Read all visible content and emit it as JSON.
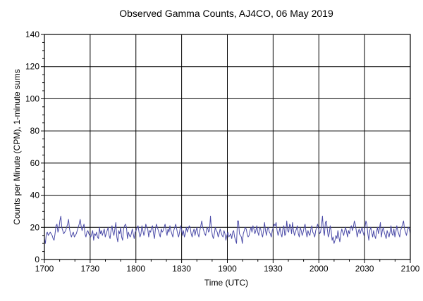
{
  "chart_data": {
    "type": "line",
    "title": "Observed Gamma Counts, AJ4CO, 06 May 2019",
    "xlabel": "Time (UTC)",
    "ylabel": "Counts per Minute (CPM), 1-minute sums",
    "x_tick_labels": [
      "1700",
      "1730",
      "1800",
      "1830",
      "1900",
      "1930",
      "2000",
      "2030",
      "2100"
    ],
    "y_ticks": [
      0,
      20,
      40,
      60,
      80,
      100,
      120,
      140
    ],
    "xlim": [
      "1700",
      "2100"
    ],
    "ylim": [
      0,
      140
    ],
    "grid": true,
    "series_color": "#4b4ba8",
    "series": [
      {
        "values": [
          13,
          10,
          16,
          17,
          15,
          16,
          17,
          16,
          15,
          13,
          12,
          16,
          21,
          22,
          17,
          19,
          24,
          27,
          20,
          18,
          16,
          17,
          18,
          20,
          22,
          25,
          19,
          16,
          14,
          16,
          17,
          14,
          15,
          16,
          18,
          20,
          22,
          25,
          21,
          18,
          20,
          22,
          16,
          14,
          17,
          18,
          16,
          15,
          14,
          16,
          18,
          12,
          16,
          15,
          17,
          14,
          13,
          20,
          16,
          18,
          15,
          17,
          19,
          14,
          16,
          18,
          20,
          15,
          13,
          18,
          21,
          17,
          15,
          19,
          23,
          14,
          11,
          18,
          16,
          20,
          14,
          12,
          19,
          21,
          22,
          20,
          13,
          17,
          15,
          14,
          16,
          19,
          16,
          13,
          17,
          18,
          20,
          21,
          17,
          14,
          16,
          21,
          18,
          15,
          17,
          22,
          20,
          19,
          14,
          18,
          17,
          20,
          21,
          16,
          13,
          19,
          22,
          20,
          18,
          16,
          14,
          19,
          17,
          18,
          20,
          22,
          18,
          15,
          19,
          17,
          21,
          18,
          16,
          14,
          18,
          20,
          22,
          19,
          16,
          14,
          17,
          21,
          19,
          15,
          18,
          14,
          16,
          20,
          17,
          19,
          21,
          20,
          16,
          14,
          17,
          19,
          15,
          18,
          20,
          16,
          14,
          18,
          21,
          24,
          20,
          18,
          16,
          15,
          19,
          20,
          17,
          18,
          27,
          19,
          15,
          13,
          16,
          20,
          18,
          17,
          14,
          16,
          19,
          17,
          15,
          14,
          18,
          16,
          12,
          15,
          17,
          14,
          15,
          16,
          13,
          17,
          18,
          14,
          12,
          10,
          24,
          24,
          16,
          15,
          14,
          10,
          16,
          18,
          20,
          19,
          16,
          14,
          15,
          18,
          20,
          17,
          21,
          19,
          16,
          18,
          21,
          17,
          15,
          20,
          19,
          16,
          14,
          18,
          23,
          18,
          15,
          19,
          20,
          17,
          16,
          14,
          18,
          20,
          22,
          21,
          23,
          18,
          15,
          17,
          20,
          16,
          14,
          19,
          21,
          15,
          16,
          24,
          18,
          17,
          22,
          21,
          16,
          23,
          18,
          15,
          17,
          19,
          21,
          16,
          14,
          20,
          18,
          15,
          17,
          20,
          22,
          17,
          14,
          18,
          16,
          15,
          19,
          21,
          17,
          16,
          14,
          18,
          20,
          22,
          19,
          16,
          17,
          21,
          27,
          18,
          15,
          23,
          24,
          19,
          14,
          16,
          21,
          18,
          12,
          14,
          10,
          12,
          15,
          13,
          18,
          14,
          11,
          16,
          19,
          17,
          15,
          18,
          20,
          17,
          14,
          18,
          16,
          20,
          21,
          18,
          20,
          24,
          22,
          18,
          14,
          17,
          19,
          16,
          18,
          20,
          17,
          15,
          20,
          24,
          22,
          16,
          12,
          18,
          20,
          17,
          14,
          18,
          15,
          13,
          17,
          20,
          16,
          19,
          23,
          14,
          18,
          20,
          17,
          15,
          13,
          18,
          16,
          14,
          17,
          21,
          16,
          15,
          19,
          14,
          17,
          21,
          18,
          16,
          14,
          18,
          20,
          22,
          24,
          19,
          17,
          15,
          18,
          20,
          19,
          16
        ]
      }
    ]
  }
}
